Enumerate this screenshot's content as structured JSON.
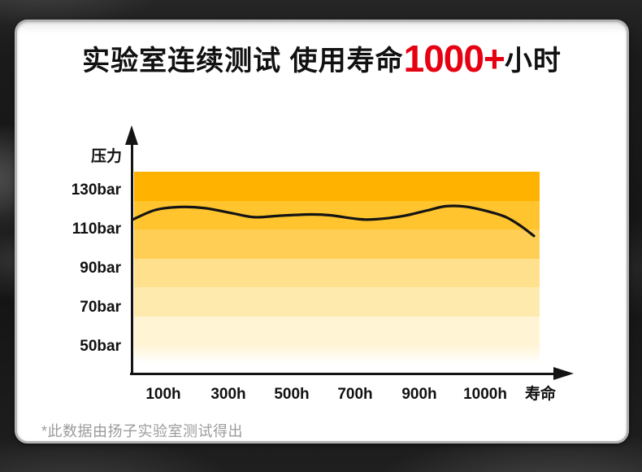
{
  "page": {
    "title": {
      "prefix": "实验室连续测试 使用寿命",
      "highlight": "1000+",
      "suffix": "小时"
    },
    "footnote": "*此数据由扬子实验室测试得出",
    "colors": {
      "highlight_red": "#e60012",
      "card_bg": "#ffffff",
      "page_bg": "#161616",
      "footnote_gray": "#9b9b9b",
      "axis_black": "#141414"
    }
  },
  "chart_data": {
    "type": "line",
    "title": "实验室连续测试 使用寿命1000+小时",
    "ylabel": "压力",
    "x_axis_end_label": "寿命",
    "y_tick_labels": [
      "130bar",
      "110bar",
      "90bar",
      "70bar",
      "50bar"
    ],
    "x_tick_labels": [
      "100h",
      "300h",
      "500h",
      "700h",
      "900h",
      "1000h"
    ],
    "x_range_hours": [
      0,
      1000
    ],
    "y_range_bar": [
      50,
      135
    ],
    "grid": "horizontal color bands, no gridlines",
    "legend": "none",
    "band_colors": [
      "#ffb200",
      "#ffc42e",
      "#ffce55",
      "#ffe08c",
      "#ffeaae",
      "#fff4d4"
    ],
    "line_color": "#141414",
    "series": [
      {
        "name": "压力 (bar)",
        "points_hour_bar": [
          [
            0,
            115.0
          ],
          [
            57,
            120.0
          ],
          [
            117,
            121.5
          ],
          [
            178,
            121.0
          ],
          [
            249,
            118.3
          ],
          [
            304,
            116.3
          ],
          [
            370,
            117.1
          ],
          [
            445,
            117.7
          ],
          [
            492,
            117.3
          ],
          [
            559,
            115.4
          ],
          [
            603,
            115.2
          ],
          [
            674,
            116.9
          ],
          [
            735,
            119.8
          ],
          [
            781,
            121.9
          ],
          [
            830,
            121.7
          ],
          [
            887,
            119.2
          ],
          [
            931,
            116.3
          ],
          [
            968,
            111.7
          ],
          [
            1000,
            106.7
          ]
        ]
      }
    ]
  }
}
